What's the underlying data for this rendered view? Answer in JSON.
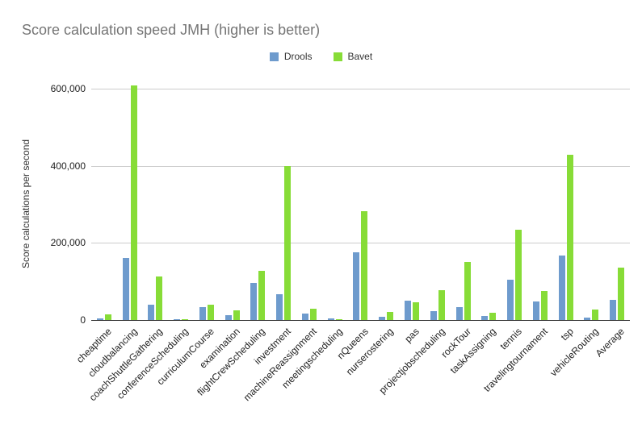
{
  "title": "Score calculation speed JMH (higher is better)",
  "y_axis_title": "Score calculations per second",
  "colors": {
    "drools": "#6e9bcd",
    "bavet": "#87dc37",
    "gridline": "#cccccc",
    "axis_line": "#333333",
    "title_text": "#757575",
    "tick_text": "#222222",
    "background": "#ffffff"
  },
  "chart_data": {
    "type": "bar",
    "title": "Score calculation speed JMH (higher is better)",
    "xlabel": "",
    "ylabel": "Score calculations per second",
    "ylim": [
      0,
      600000
    ],
    "grid": true,
    "legend_position": "top-center",
    "yticks": [
      {
        "value": 0,
        "label": "0"
      },
      {
        "value": 200000,
        "label": "200,000"
      },
      {
        "value": 400000,
        "label": "400,000"
      },
      {
        "value": 600000,
        "label": "600,000"
      }
    ],
    "categories": [
      "cheaptime",
      "cloudbalancing",
      "coachShuttleGathering",
      "conferenceScheduling",
      "curriculumCourse",
      "examination",
      "flightCrewScheduling",
      "investment",
      "machineReassignment",
      "meetingscheduling",
      "nQueens",
      "nurserostering",
      "pas",
      "projectjobscheduling",
      "rockTour",
      "taskAssigning",
      "tennis",
      "travelingtournament",
      "tsp",
      "vehicleRouting",
      "Average"
    ],
    "series": [
      {
        "name": "Drools",
        "color": "#6e9bcd",
        "values": [
          5000,
          162000,
          40000,
          3000,
          33000,
          12500,
          96000,
          68000,
          16000,
          4000,
          176000,
          9000,
          51000,
          23000,
          33000,
          11000,
          104000,
          49000,
          167000,
          7000,
          52000
        ]
      },
      {
        "name": "Bavet",
        "color": "#87dc37",
        "values": [
          15000,
          608000,
          112000,
          2500,
          40000,
          25000,
          127000,
          400000,
          29000,
          3000,
          283000,
          20000,
          47000,
          78000,
          150000,
          19000,
          234000,
          76000,
          428000,
          27000,
          135000
        ]
      }
    ]
  }
}
